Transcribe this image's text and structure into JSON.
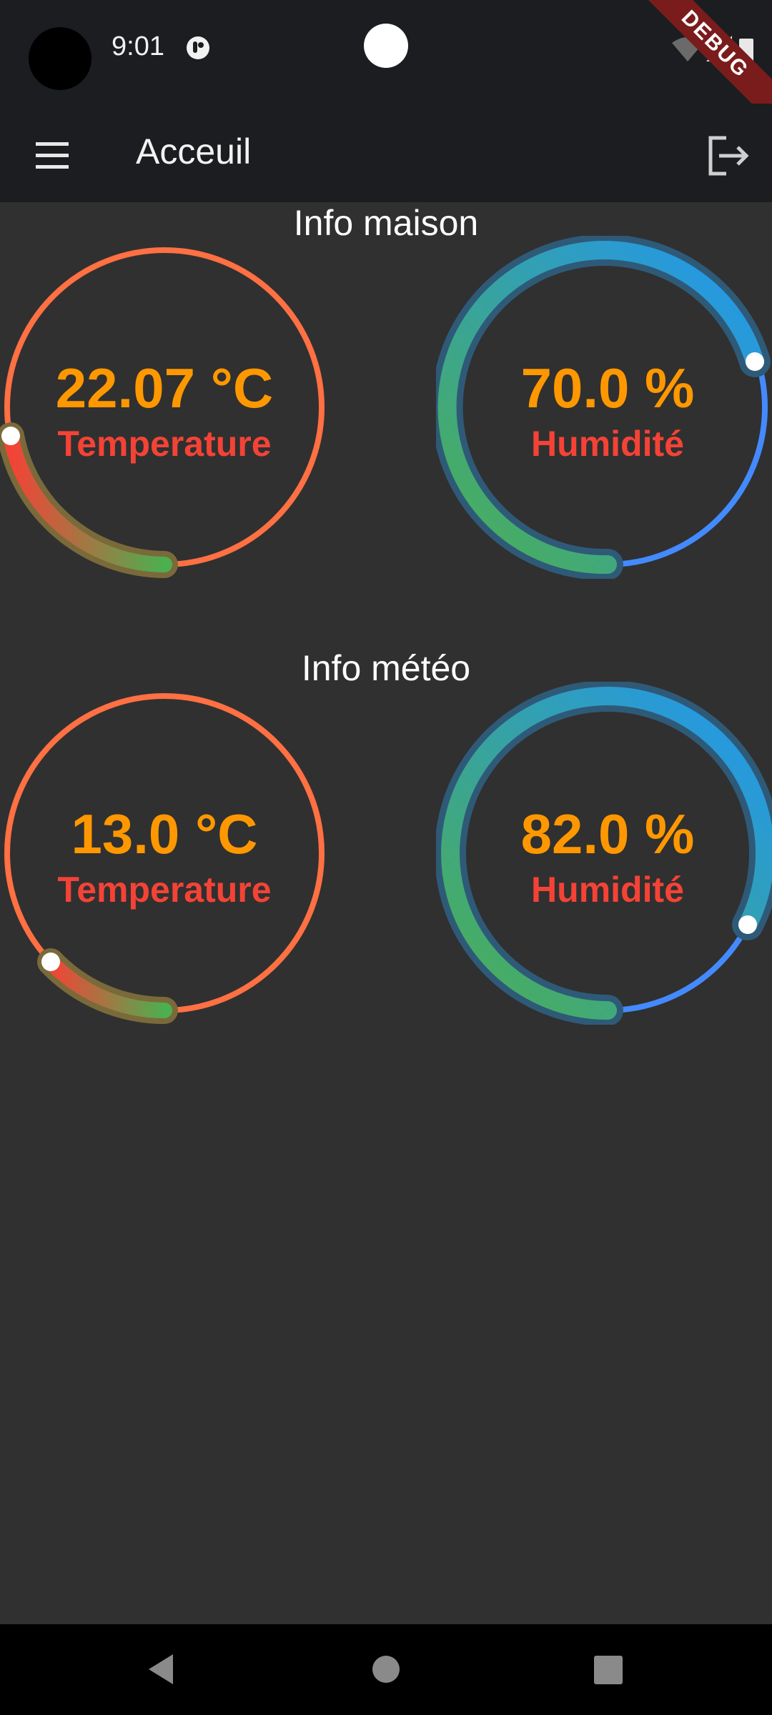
{
  "status_bar": {
    "time": "9:01",
    "debug_banner": "DEBUG"
  },
  "app_bar": {
    "title": "Acceuil"
  },
  "sections": [
    {
      "title": "Info maison",
      "gauges": [
        {
          "value_text": "22.07 °C",
          "label": "Temperature",
          "value": 22.07,
          "kind": "temperature"
        },
        {
          "value_text": "70.0 %",
          "label": "Humidité",
          "value": 70.0,
          "kind": "humidity"
        }
      ]
    },
    {
      "title": "Info météo",
      "gauges": [
        {
          "value_text": "13.0 °C",
          "label": "Temperature",
          "value": 13.0,
          "kind": "temperature"
        },
        {
          "value_text": "82.0 %",
          "label": "Humidité",
          "value": 82.0,
          "kind": "humidity"
        }
      ]
    }
  ],
  "colors": {
    "background": "#303030",
    "bar": "#1b1d20",
    "value_text": "#ff9800",
    "label_text": "#f44336",
    "temperature_ring": "#ff7043",
    "humidity_ring": "#448aff"
  },
  "icons": {
    "menu": "menu-icon",
    "logout": "logout-icon",
    "back": "back-icon",
    "home": "home-icon",
    "recents": "recents-icon"
  }
}
